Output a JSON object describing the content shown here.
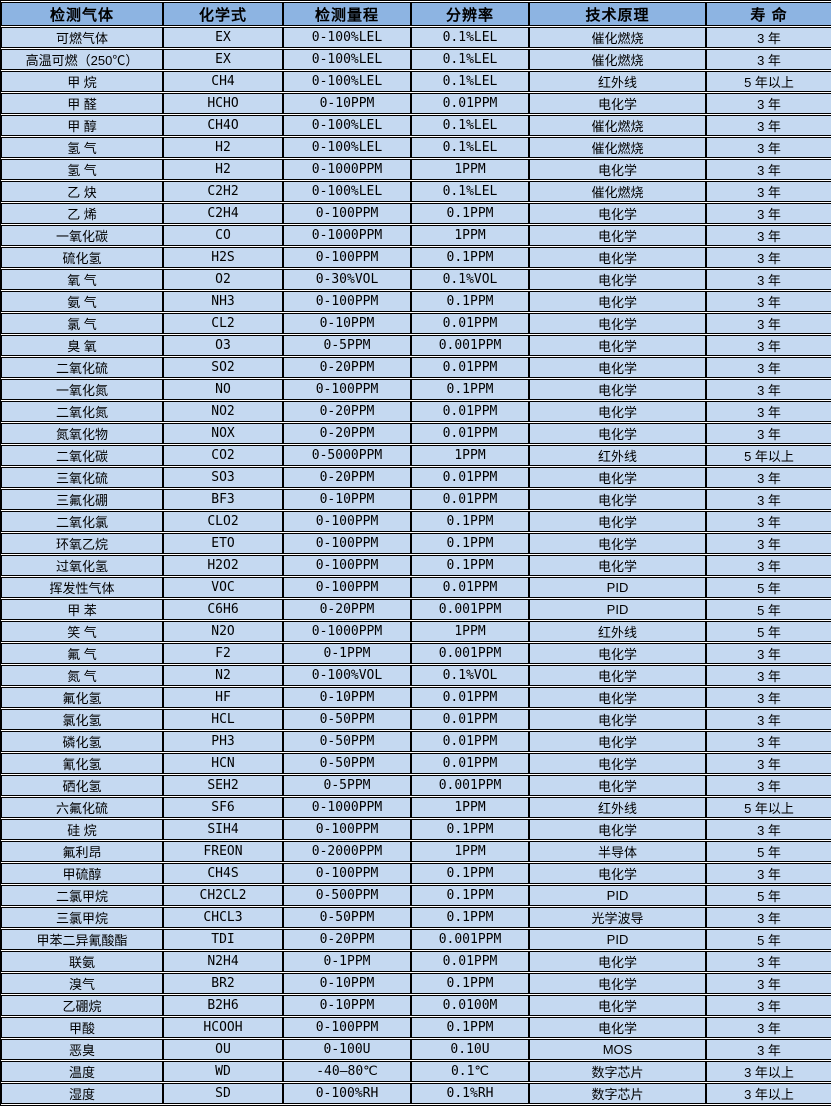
{
  "colors": {
    "header_bg": "#8DB4E2",
    "row_bg": "#C5D9F1",
    "border": "#000000",
    "row_gap_line": "#FFFFFF",
    "text": "#000000"
  },
  "table": {
    "headers": [
      "检测气体",
      "化学式",
      "检测量程",
      "分辨率",
      "技术原理",
      "寿 命"
    ],
    "rows": [
      [
        "可燃气体",
        "EX",
        "0-100%LEL",
        "0.1%LEL",
        "催化燃烧",
        "3 年"
      ],
      [
        "高温可燃（250℃）",
        "EX",
        "0-100%LEL",
        "0.1%LEL",
        "催化燃烧",
        "3 年"
      ],
      [
        "甲 烷",
        "CH4",
        "0-100%LEL",
        "0.1%LEL",
        "红外线",
        "5 年以上"
      ],
      [
        "甲 醛",
        "HCHO",
        "0-10PPM",
        "0.01PPM",
        "电化学",
        "3 年"
      ],
      [
        "甲 醇",
        "CH4O",
        "0-100%LEL",
        "0.1%LEL",
        "催化燃烧",
        "3 年"
      ],
      [
        "氢 气",
        "H2",
        "0-100%LEL",
        "0.1%LEL",
        "催化燃烧",
        "3 年"
      ],
      [
        "氢 气",
        "H2",
        "0-1000PPM",
        "1PPM",
        "电化学",
        "3 年"
      ],
      [
        "乙 炔",
        "C2H2",
        "0-100%LEL",
        "0.1%LEL",
        "催化燃烧",
        "3 年"
      ],
      [
        "乙 烯",
        "C2H4",
        "0-100PPM",
        "0.1PPM",
        "电化学",
        "3 年"
      ],
      [
        "一氧化碳",
        "CO",
        "0-1000PPM",
        "1PPM",
        "电化学",
        "3 年"
      ],
      [
        "硫化氢",
        "H2S",
        "0-100PPM",
        "0.1PPM",
        "电化学",
        "3 年"
      ],
      [
        "氧 气",
        "O2",
        "0-30%VOL",
        "0.1%VOL",
        "电化学",
        "3 年"
      ],
      [
        "氨 气",
        "NH3",
        "0-100PPM",
        "0.1PPM",
        "电化学",
        "3 年"
      ],
      [
        "氯 气",
        "CL2",
        "0-10PPM",
        "0.01PPM",
        "电化学",
        "3 年"
      ],
      [
        "臭 氧",
        "O3",
        "0-5PPM",
        "0.001PPM",
        "电化学",
        "3 年"
      ],
      [
        "二氧化硫",
        "SO2",
        "0-20PPM",
        "0.01PPM",
        "电化学",
        "3 年"
      ],
      [
        "一氧化氮",
        "NO",
        "0-100PPM",
        "0.1PPM",
        "电化学",
        "3 年"
      ],
      [
        "二氧化氮",
        "NO2",
        "0-20PPM",
        "0.01PPM",
        "电化学",
        "3 年"
      ],
      [
        "氮氧化物",
        "NOX",
        "0-20PPM",
        "0.01PPM",
        "电化学",
        "3 年"
      ],
      [
        "二氧化碳",
        "CO2",
        "0-5000PPM",
        "1PPM",
        "红外线",
        "5 年以上"
      ],
      [
        "三氧化硫",
        "SO3",
        "0-20PPM",
        "0.01PPM",
        "电化学",
        "3 年"
      ],
      [
        "三氟化硼",
        "BF3",
        "0-10PPM",
        "0.01PPM",
        "电化学",
        "3 年"
      ],
      [
        "二氧化氯",
        "CLO2",
        "0-100PPM",
        "0.1PPM",
        "电化学",
        "3 年"
      ],
      [
        "环氧乙烷",
        "ETO",
        "0-100PPM",
        "0.1PPM",
        "电化学",
        "3 年"
      ],
      [
        "过氧化氢",
        "H2O2",
        "0-100PPM",
        "0.1PPM",
        "电化学",
        "3 年"
      ],
      [
        "挥发性气体",
        "VOC",
        "0-100PPM",
        "0.01PPM",
        "PID",
        "5 年"
      ],
      [
        "甲 苯",
        "C6H6",
        "0-20PPM",
        "0.001PPM",
        "PID",
        "5 年"
      ],
      [
        "笑 气",
        "N2O",
        "0-1000PPM",
        "1PPM",
        "红外线",
        "5 年"
      ],
      [
        "氟 气",
        "F2",
        "0-1PPM",
        "0.001PPM",
        "电化学",
        "3 年"
      ],
      [
        "氮 气",
        "N2",
        "0-100%VOL",
        "0.1%VOL",
        "电化学",
        "3 年"
      ],
      [
        "氟化氢",
        "HF",
        "0-10PPM",
        "0.01PPM",
        "电化学",
        "3 年"
      ],
      [
        "氯化氢",
        "HCL",
        "0-50PPM",
        "0.01PPM",
        "电化学",
        "3 年"
      ],
      [
        "磷化氢",
        "PH3",
        "0-50PPM",
        "0.01PPM",
        "电化学",
        "3 年"
      ],
      [
        "氰化氢",
        "HCN",
        "0-50PPM",
        "0.01PPM",
        "电化学",
        "3 年"
      ],
      [
        "硒化氢",
        "SEH2",
        "0-5PPM",
        "0.001PPM",
        "电化学",
        "3 年"
      ],
      [
        "六氟化硫",
        "SF6",
        "0-1000PPM",
        "1PPM",
        "红外线",
        "5 年以上"
      ],
      [
        "硅 烷",
        "SIH4",
        "0-100PPM",
        "0.1PPM",
        "电化学",
        "3 年"
      ],
      [
        "氟利昂",
        "FREON",
        "0-2000PPM",
        "1PPM",
        "半导体",
        "5 年"
      ],
      [
        "甲硫醇",
        "CH4S",
        "0-100PPM",
        "0.1PPM",
        "电化学",
        "3 年"
      ],
      [
        "二氯甲烷",
        "CH2CL2",
        "0-500PPM",
        "0.1PPM",
        "PID",
        "5 年"
      ],
      [
        "三氯甲烷",
        "CHCL3",
        "0-50PPM",
        "0.1PPM",
        "光学波导",
        "3 年"
      ],
      [
        "甲苯二异氰酸酯",
        "TDI",
        "0-20PPM",
        "0.001PPM",
        "PID",
        "5 年"
      ],
      [
        "联氨",
        "N2H4",
        "0-1PPM",
        "0.01PPM",
        "电化学",
        "3 年"
      ],
      [
        "溴气",
        "BR2",
        "0-10PPM",
        "0.1PPM",
        "电化学",
        "3 年"
      ],
      [
        "乙硼烷",
        "B2H6",
        "0-10PPM",
        "0.0100M",
        "电化学",
        "3 年"
      ],
      [
        "甲酸",
        "HCOOH",
        "0-100PPM",
        "0.1PPM",
        "电化学",
        "3 年"
      ],
      [
        "恶臭",
        "OU",
        "0-100U",
        "0.10U",
        "MOS",
        "3 年"
      ],
      [
        "温度",
        "WD",
        "-40—80℃",
        "0.1℃",
        "数字芯片",
        "3 年以上"
      ],
      [
        "湿度",
        "SD",
        "0-100%RH",
        "0.1%RH",
        "数字芯片",
        "3 年以上"
      ]
    ]
  }
}
